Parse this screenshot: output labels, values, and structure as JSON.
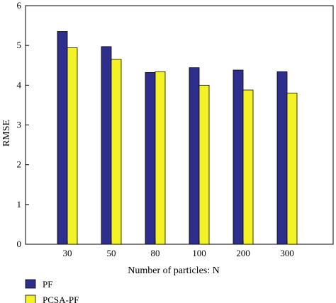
{
  "chart_data": {
    "type": "bar",
    "title": "",
    "xlabel": "Number of particles: N",
    "ylabel": "RMSE",
    "categories": [
      "30",
      "50",
      "80",
      "100",
      "200",
      "300"
    ],
    "series": [
      {
        "name": "PF",
        "color": "#2e2e8c",
        "values": [
          5.35,
          4.97,
          4.32,
          4.44,
          4.38,
          4.34
        ]
      },
      {
        "name": "PCSA-PF",
        "color": "#f2f226",
        "values": [
          4.94,
          4.65,
          4.34,
          4.0,
          3.88,
          3.8
        ]
      }
    ],
    "ylim": [
      0,
      6
    ],
    "yticks": [
      "0",
      "1",
      "2",
      "3",
      "4",
      "5",
      "6"
    ],
    "grid": false,
    "legend_position": "bottom-left"
  }
}
